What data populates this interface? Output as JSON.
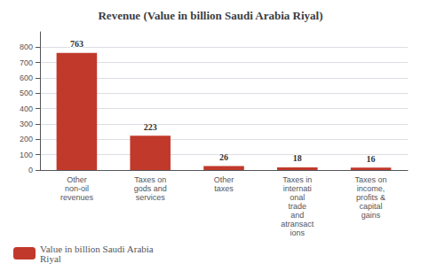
{
  "chart_data": {
    "type": "bar",
    "title": "Revenue (Value in billion Saudi Arabia Riyal)",
    "categories": [
      "Other\nnon-oil\nrevenues",
      "Taxes on\ngods and\nservices",
      "Other\ntaxes",
      "Taxes in\ninternati\nonal\ntrade\nand\natransact\nions",
      "Taxes on\nincome,\nprofits &\ncapital\ngains"
    ],
    "series": [
      {
        "name": "Value in billion Saudi Arabia\nRiyal",
        "color": "#c0392b",
        "values": [
          763,
          223,
          26,
          18,
          16
        ]
      }
    ],
    "ylim": [
      0,
      900
    ],
    "yticks": [
      0,
      100,
      200,
      300,
      400,
      500,
      600,
      700,
      800
    ],
    "grid": true,
    "legend": "lower left",
    "data_labels": true
  }
}
